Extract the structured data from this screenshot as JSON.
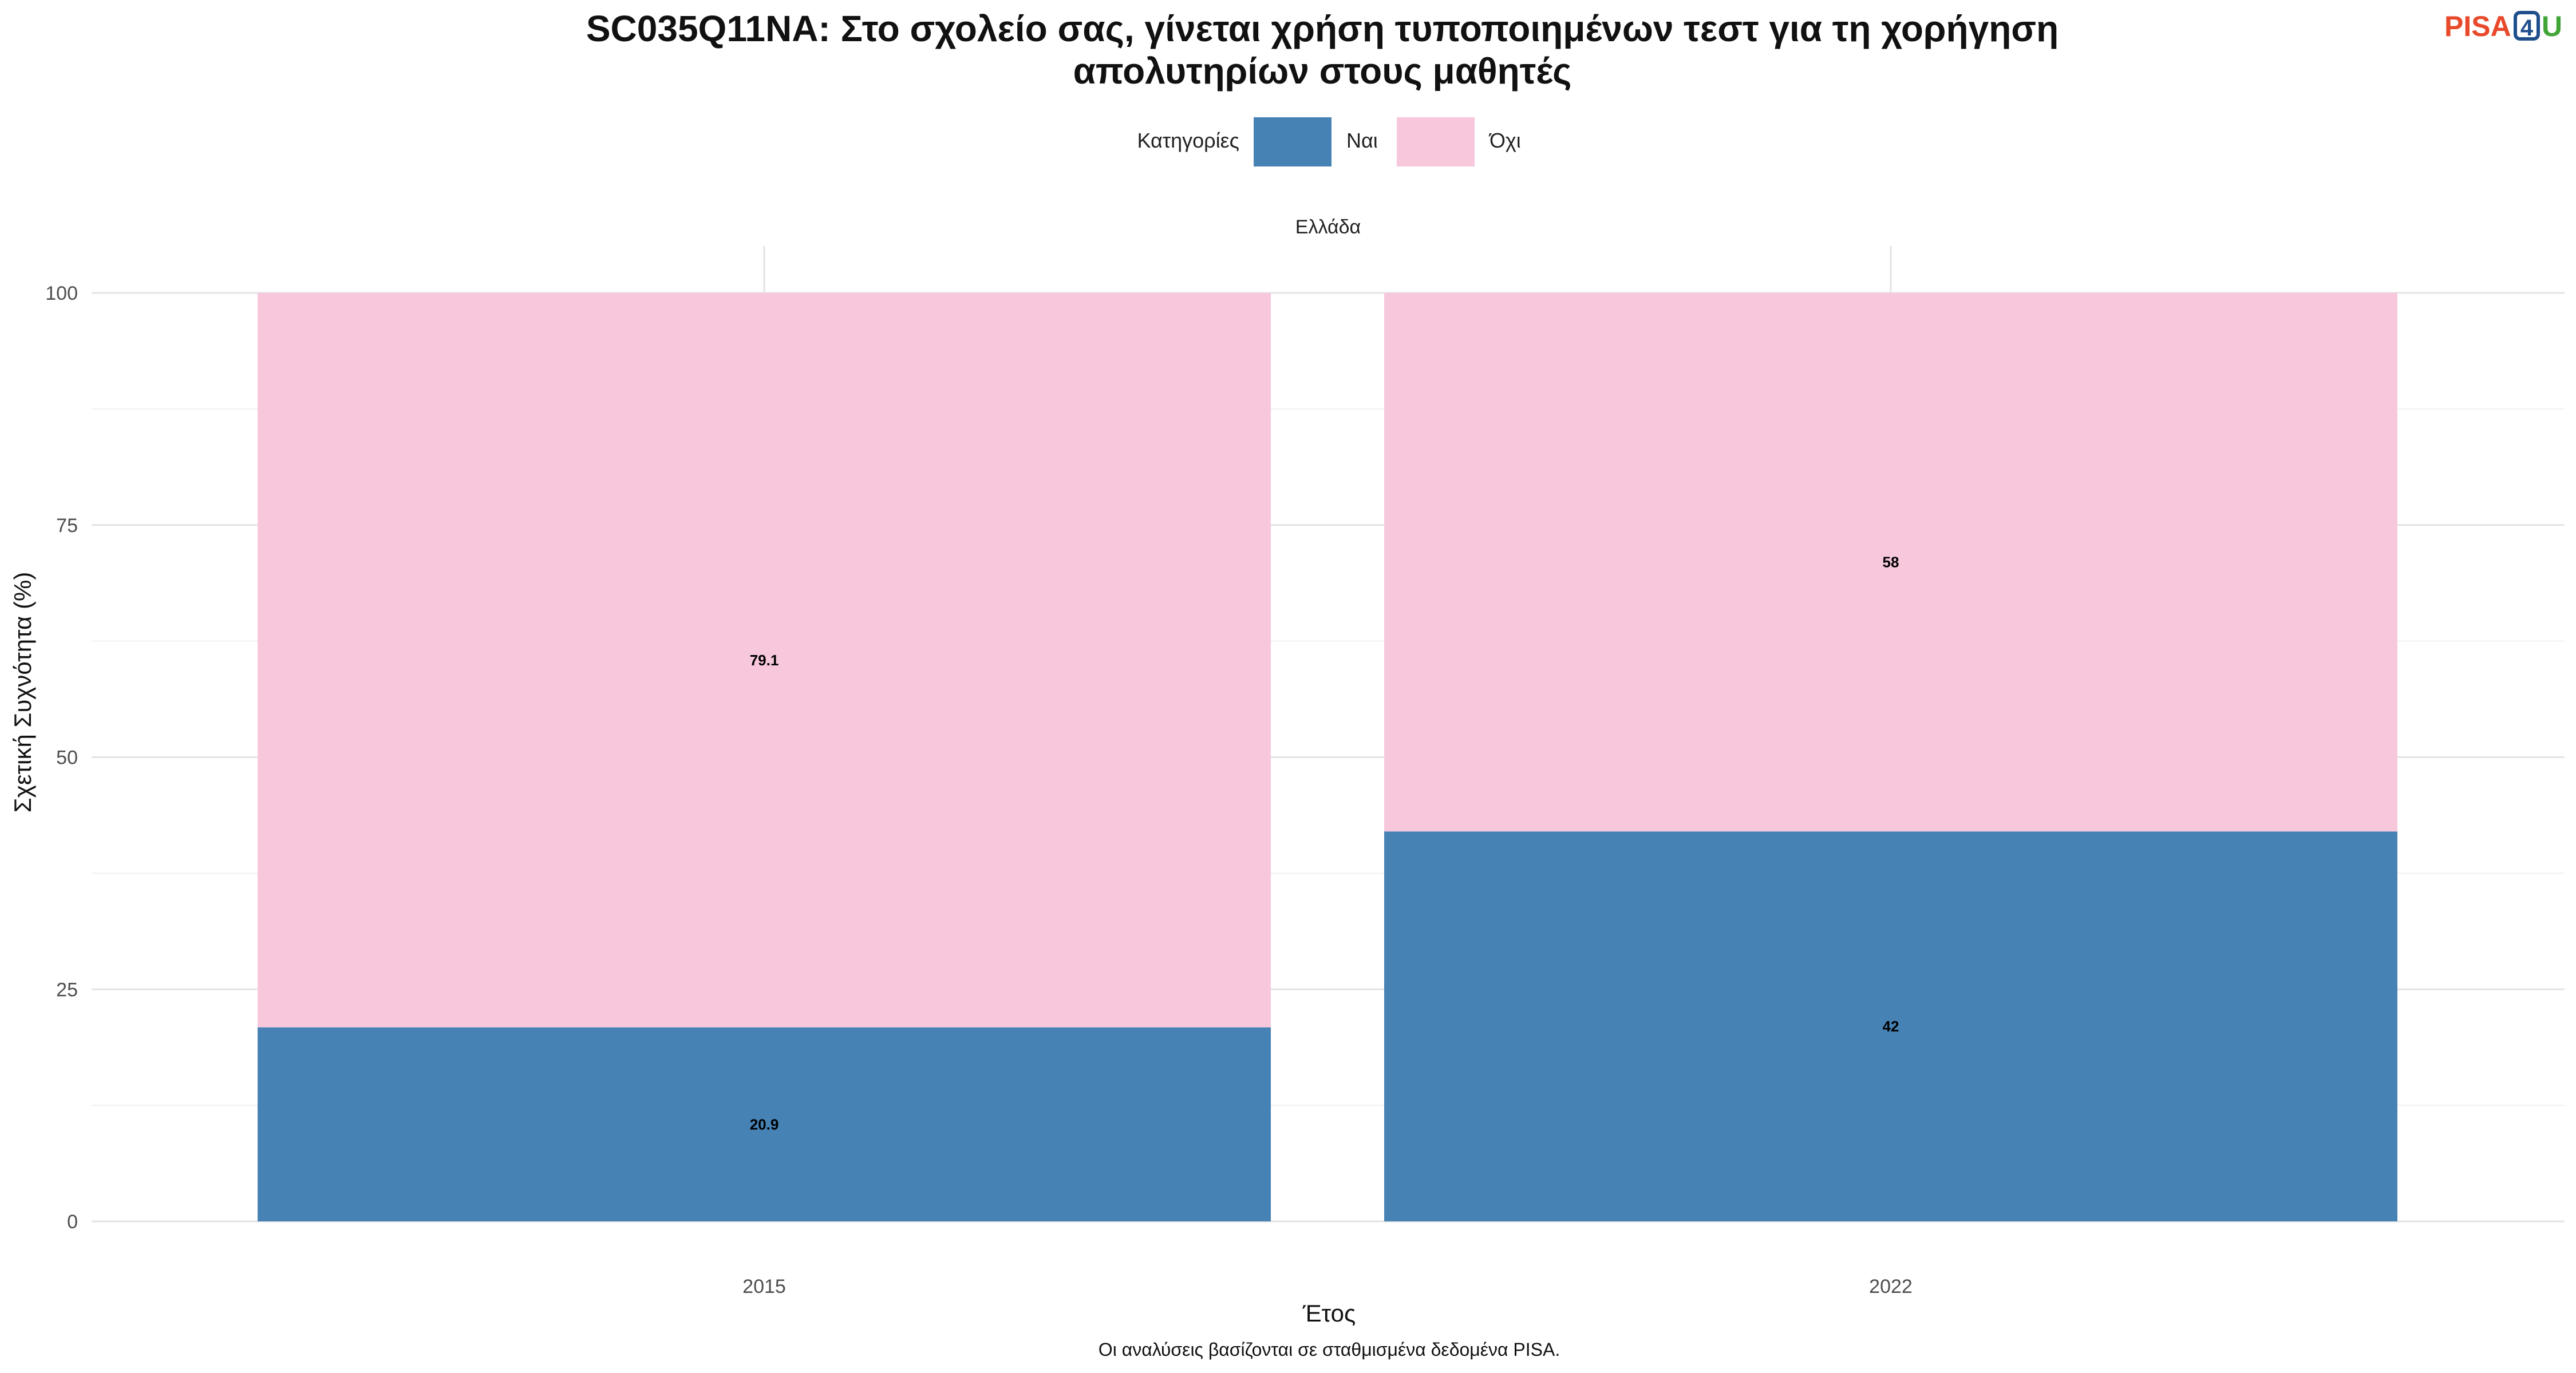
{
  "chart_data": {
    "type": "bar",
    "stacked": true,
    "title_line1": "SC035Q11NA: Στο σχολείο σας, γίνεται χρήση τυποποιημένων τεστ για τη χορήγηση",
    "title_line2": "απολυτηρίων στους μαθητές",
    "facet_label": "Ελλάδα",
    "categories": [
      "2015",
      "2022"
    ],
    "series": [
      {
        "name": "Ναι",
        "values": [
          20.9,
          42
        ],
        "color": "#4682B4"
      },
      {
        "name": "Όχι",
        "values": [
          79.1,
          58
        ],
        "color": "#F7C7DC"
      }
    ],
    "xlabel": "Έτος",
    "ylabel": "Σχετική Συχνότητα (%)",
    "ylim": [
      0,
      100
    ],
    "yticks": [
      0,
      25,
      50,
      75,
      100
    ],
    "legend_title": "Κατηγορίες",
    "legend_position": "top",
    "grid": true,
    "caption": "Οι αναλύσεις βασίζονται σε σταθμισμένα δεδομένα PISA."
  },
  "logo": {
    "part1": "PISA",
    "part2": "4",
    "part3": "U"
  }
}
